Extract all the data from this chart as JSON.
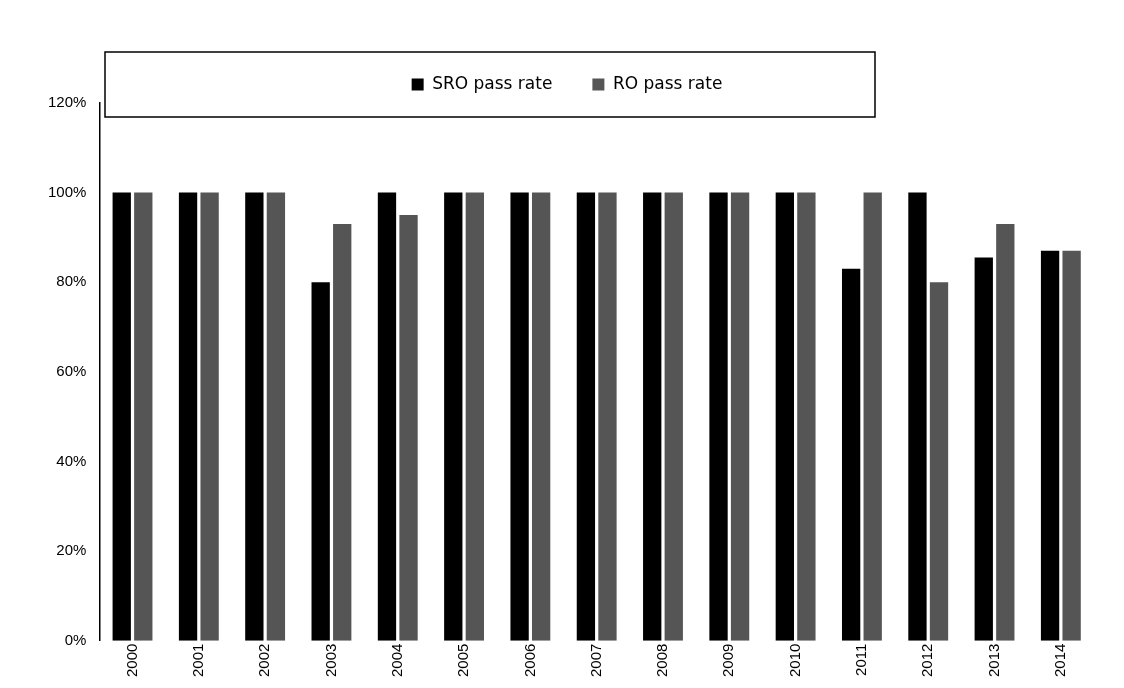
{
  "chart_data": {
    "type": "bar",
    "categories": [
      "2000",
      "2001",
      "2002",
      "2003",
      "2004",
      "2005",
      "2006",
      "2007",
      "2008",
      "2009",
      "2010",
      "2011",
      "2012",
      "2013",
      "2014"
    ],
    "series": [
      {
        "name": "SRO pass rate",
        "color": "#000000",
        "values": [
          100,
          100,
          100,
          80,
          100,
          100,
          100,
          100,
          100,
          100,
          100,
          83,
          100,
          85.5,
          87
        ]
      },
      {
        "name": "RO pass rate",
        "color": "#555555",
        "values": [
          100,
          100,
          100,
          93,
          95,
          100,
          100,
          100,
          100,
          100,
          100,
          100,
          80,
          93,
          87
        ]
      }
    ],
    "ylim": [
      0,
      120
    ],
    "yticks": [
      {
        "value": 0,
        "label": "0%"
      },
      {
        "value": 20,
        "label": "20%"
      },
      {
        "value": 40,
        "label": "40%"
      },
      {
        "value": 60,
        "label": "60%"
      },
      {
        "value": 80,
        "label": "80%"
      },
      {
        "value": 100,
        "label": "100%"
      },
      {
        "value": 120,
        "label": "120%"
      }
    ],
    "grid": false,
    "legend": "top"
  }
}
